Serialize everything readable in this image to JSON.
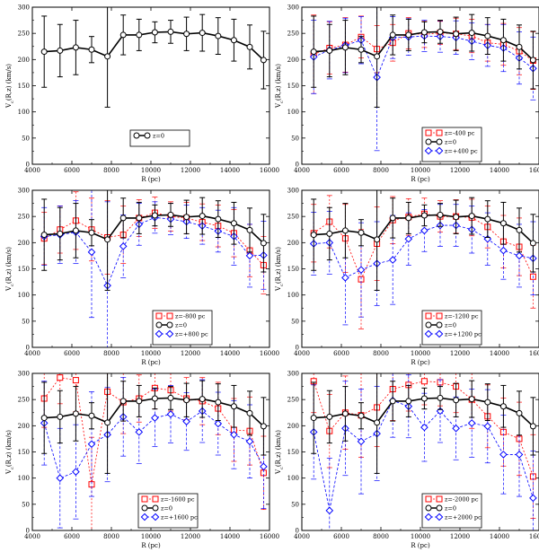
{
  "figure": {
    "background": "#ffffff"
  },
  "styles": {
    "mid": {
      "color": "#000000",
      "marker": "circle",
      "dash": ""
    },
    "low": {
      "color": "#ff0000",
      "marker": "square",
      "dash": "2,2"
    },
    "high": {
      "color": "#0000ff",
      "marker": "diamond",
      "dash": "3,2"
    }
  },
  "chart_data": [
    {
      "type": "line",
      "xlabel": "R (pc)",
      "ylabel": "V_c(R,z) (km/s)",
      "xlim": [
        4000,
        16000
      ],
      "ylim": [
        0,
        300
      ],
      "xticks": [
        4000,
        6000,
        8000,
        10000,
        12000,
        14000,
        16000
      ],
      "yticks": [
        0,
        50,
        100,
        150,
        200,
        250,
        300
      ],
      "legend_position": "bottom-center",
      "x": [
        4600,
        5400,
        6200,
        7000,
        7800,
        8600,
        9400,
        10200,
        11000,
        11800,
        12600,
        13400,
        14200,
        15000,
        15700
      ],
      "series": [
        {
          "name": "z=0",
          "style": "mid",
          "values": [
            215,
            217,
            223,
            219,
            206,
            247,
            247,
            252,
            253,
            249,
            251,
            245,
            237,
            224,
            199
          ],
          "errors": [
            68,
            50,
            52,
            25,
            97,
            38,
            30,
            20,
            22,
            32,
            35,
            35,
            40,
            42,
            55
          ]
        }
      ]
    },
    {
      "type": "line",
      "xlabel": "R (pc)",
      "ylabel": "V_c(R,z) (km/s)",
      "xlim": [
        4000,
        16000
      ],
      "ylim": [
        0,
        300
      ],
      "xticks": [
        4000,
        6000,
        8000,
        10000,
        12000,
        14000,
        16000
      ],
      "yticks": [
        0,
        50,
        100,
        150,
        200,
        250,
        300
      ],
      "legend_position": "bottom-right",
      "x": [
        4600,
        5400,
        6200,
        7000,
        7800,
        8600,
        9400,
        10200,
        11000,
        11800,
        12600,
        13400,
        14200,
        15000,
        15700
      ],
      "series": [
        {
          "name": "z=-400 pc",
          "style": "low",
          "values": [
            210,
            222,
            228,
            243,
            220,
            232,
            250,
            248,
            251,
            249,
            245,
            232,
            229,
            216,
            198
          ],
          "errors": [
            75,
            50,
            52,
            40,
            45,
            35,
            30,
            25,
            22,
            30,
            32,
            35,
            40,
            45,
            55
          ]
        },
        {
          "name": "z=0",
          "style": "mid",
          "values": [
            215,
            217,
            223,
            219,
            206,
            247,
            247,
            252,
            253,
            249,
            251,
            245,
            237,
            224,
            199
          ],
          "errors": [
            68,
            50,
            52,
            25,
            97,
            38,
            30,
            20,
            22,
            32,
            35,
            35,
            40,
            42,
            55
          ]
        },
        {
          "name": "z=+400 pc",
          "style": "high",
          "values": [
            205,
            218,
            227,
            237,
            166,
            242,
            243,
            245,
            244,
            242,
            235,
            227,
            222,
            203,
            183
          ],
          "errors": [
            70,
            55,
            52,
            45,
            140,
            40,
            35,
            30,
            30,
            32,
            35,
            40,
            45,
            50,
            60
          ]
        }
      ]
    },
    {
      "type": "line",
      "xlabel": "R (pc)",
      "ylabel": "V_c(R,z) (km/s)",
      "xlim": [
        4000,
        16000
      ],
      "ylim": [
        0,
        300
      ],
      "xticks": [
        4000,
        6000,
        8000,
        10000,
        12000,
        14000,
        16000
      ],
      "yticks": [
        0,
        50,
        100,
        150,
        200,
        250,
        300
      ],
      "legend_position": "bottom-right",
      "x": [
        4600,
        5400,
        6200,
        7000,
        7800,
        8600,
        9400,
        10200,
        11000,
        11800,
        12600,
        13400,
        14200,
        15000,
        15700
      ],
      "series": [
        {
          "name": "z=-800 pc",
          "style": "low",
          "values": [
            208,
            225,
            242,
            225,
            210,
            215,
            247,
            257,
            250,
            247,
            239,
            232,
            218,
            185,
            157
          ],
          "errors": [
            50,
            45,
            55,
            60,
            70,
            55,
            35,
            30,
            28,
            30,
            35,
            40,
            45,
            50,
            55
          ]
        },
        {
          "name": "z=0",
          "style": "mid",
          "values": [
            215,
            217,
            223,
            219,
            206,
            247,
            247,
            252,
            253,
            249,
            251,
            245,
            237,
            224,
            199
          ],
          "errors": [
            68,
            50,
            52,
            25,
            97,
            38,
            30,
            20,
            22,
            32,
            35,
            35,
            40,
            42,
            55
          ]
        },
        {
          "name": "z=+800 pc",
          "style": "high",
          "values": [
            212,
            215,
            220,
            182,
            118,
            193,
            235,
            248,
            245,
            240,
            232,
            222,
            212,
            175,
            176
          ],
          "errors": [
            55,
            55,
            60,
            125,
            160,
            60,
            40,
            30,
            30,
            32,
            35,
            40,
            55,
            60,
            65
          ]
        }
      ]
    },
    {
      "type": "line",
      "xlabel": "R (pc)",
      "ylabel": "V_c(R,z) (km/s)",
      "xlim": [
        4000,
        16000
      ],
      "ylim": [
        0,
        300
      ],
      "xticks": [
        4000,
        6000,
        8000,
        10000,
        12000,
        14000,
        16000
      ],
      "yticks": [
        0,
        50,
        100,
        150,
        200,
        250,
        300
      ],
      "legend_position": "bottom-right",
      "x": [
        4600,
        5400,
        6200,
        7000,
        7800,
        8600,
        9400,
        10200,
        11000,
        11800,
        12600,
        13400,
        14200,
        15000,
        15700
      ],
      "series": [
        {
          "name": "z=-1200 pc",
          "style": "low",
          "values": [
            218,
            240,
            208,
            130,
            198,
            243,
            249,
            255,
            250,
            250,
            248,
            230,
            202,
            192,
            135
          ],
          "errors": [
            55,
            50,
            65,
            95,
            70,
            45,
            35,
            30,
            30,
            32,
            35,
            40,
            50,
            55,
            60
          ]
        },
        {
          "name": "z=0",
          "style": "mid",
          "values": [
            215,
            217,
            223,
            219,
            206,
            247,
            247,
            252,
            253,
            249,
            251,
            245,
            237,
            224,
            199
          ],
          "errors": [
            68,
            50,
            52,
            25,
            97,
            38,
            30,
            20,
            22,
            32,
            35,
            35,
            40,
            42,
            55
          ]
        },
        {
          "name": "z=+1200 pc",
          "style": "high",
          "values": [
            198,
            200,
            133,
            148,
            160,
            167,
            207,
            223,
            233,
            233,
            225,
            207,
            185,
            175,
            170
          ],
          "errors": [
            60,
            60,
            90,
            90,
            80,
            85,
            50,
            40,
            40,
            40,
            45,
            50,
            55,
            60,
            70
          ]
        }
      ]
    },
    {
      "type": "line",
      "xlabel": "R (pc)",
      "ylabel": "V_c(R,z) (km/s)",
      "xlim": [
        4000,
        16000
      ],
      "ylim": [
        0,
        300
      ],
      "xticks": [
        4000,
        6000,
        8000,
        10000,
        12000,
        14000,
        16000
      ],
      "yticks": [
        0,
        50,
        100,
        150,
        200,
        250,
        300
      ],
      "legend_position": "bottom-left",
      "x": [
        4600,
        5400,
        6200,
        7000,
        7800,
        8600,
        9400,
        10200,
        11000,
        11800,
        12600,
        13400,
        14200,
        15000,
        15700
      ],
      "series": [
        {
          "name": "z=-1600 pc",
          "style": "low",
          "values": [
            252,
            292,
            287,
            88,
            265,
            245,
            252,
            272,
            268,
            252,
            247,
            233,
            192,
            190,
            110
          ],
          "errors": [
            55,
            50,
            60,
            90,
            80,
            60,
            45,
            40,
            40,
            40,
            45,
            50,
            60,
            65,
            70
          ]
        },
        {
          "name": "z=0",
          "style": "mid",
          "values": [
            215,
            217,
            223,
            219,
            206,
            247,
            247,
            252,
            253,
            249,
            251,
            245,
            237,
            224,
            199
          ],
          "errors": [
            68,
            50,
            52,
            25,
            97,
            38,
            30,
            20,
            22,
            32,
            35,
            35,
            40,
            42,
            55
          ]
        },
        {
          "name": "z=+1600 pc",
          "style": "high",
          "values": [
            205,
            100,
            112,
            165,
            183,
            217,
            188,
            215,
            222,
            208,
            228,
            204,
            183,
            170,
            122
          ],
          "errors": [
            80,
            95,
            90,
            100,
            90,
            75,
            60,
            55,
            55,
            55,
            60,
            60,
            65,
            70,
            80
          ]
        }
      ]
    },
    {
      "type": "line",
      "xlabel": "R (pc)",
      "ylabel": "V_c(R,z) (km/s)",
      "xlim": [
        4000,
        16000
      ],
      "ylim": [
        0,
        300
      ],
      "xticks": [
        4000,
        6000,
        8000,
        10000,
        12000,
        14000,
        16000
      ],
      "yticks": [
        0,
        50,
        100,
        150,
        200,
        250,
        300
      ],
      "legend_position": "bottom-right",
      "x": [
        4600,
        5400,
        6200,
        7000,
        7800,
        8600,
        9400,
        10200,
        11000,
        11800,
        12600,
        13400,
        14200,
        15000,
        15700
      ],
      "series": [
        {
          "name": "z=-2000 pc",
          "style": "low",
          "values": [
            285,
            190,
            225,
            220,
            235,
            270,
            278,
            285,
            283,
            275,
            250,
            218,
            188,
            175,
            103
          ],
          "errors": [
            60,
            70,
            70,
            80,
            75,
            60,
            50,
            45,
            45,
            50,
            55,
            60,
            65,
            70,
            80
          ]
        },
        {
          "name": "z=0",
          "style": "mid",
          "values": [
            215,
            217,
            223,
            219,
            206,
            247,
            247,
            252,
            253,
            249,
            251,
            245,
            237,
            224,
            199
          ],
          "errors": [
            68,
            50,
            52,
            25,
            97,
            38,
            30,
            20,
            22,
            32,
            35,
            35,
            40,
            42,
            55
          ]
        },
        {
          "name": "z=+2000 pc",
          "style": "high",
          "values": [
            188,
            38,
            195,
            170,
            185,
            248,
            237,
            197,
            228,
            195,
            205,
            199,
            145,
            145,
            62
          ],
          "errors": [
            90,
            100,
            90,
            100,
            90,
            70,
            60,
            65,
            60,
            60,
            65,
            70,
            75,
            80,
            90
          ]
        }
      ]
    }
  ]
}
